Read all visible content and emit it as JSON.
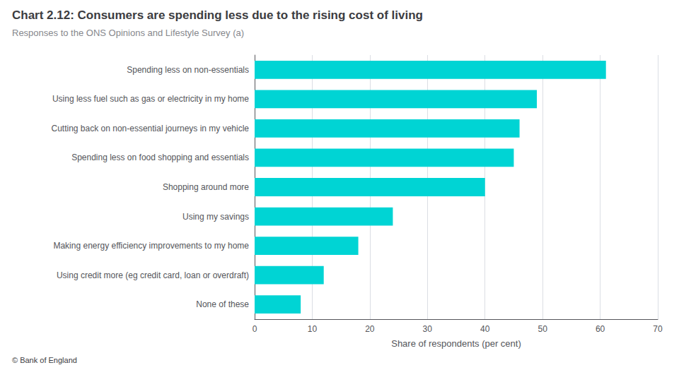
{
  "chart_data": {
    "type": "bar",
    "orientation": "horizontal",
    "title": "Chart 2.12: Consumers are spending less due to the rising cost of living",
    "subtitle": "Responses to the ONS Opinions and Lifestyle Survey (a)",
    "xlabel": "Share of respondents (per cent)",
    "footer": "© Bank of England",
    "categories": [
      "Spending less on non-essentials",
      "Using less fuel such as gas or electricity in my home",
      "Cutting back on non-essential journeys in my vehicle",
      "Spending less on food shopping and essentials",
      "Shopping around more",
      "Using my savings",
      "Making energy efficiency improvements to my home",
      "Using credit more (eg credit card, loan or overdraft)",
      "None of these"
    ],
    "values": [
      61,
      49,
      46,
      45,
      40,
      24,
      18,
      12,
      8
    ],
    "color": "#00D4D4",
    "xlim": [
      0,
      70
    ],
    "xticks": [
      0,
      10,
      20,
      30,
      40,
      50,
      60,
      70
    ],
    "grid": true
  }
}
